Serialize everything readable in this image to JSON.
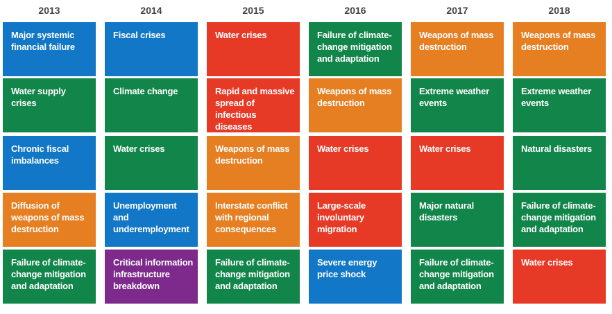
{
  "colors": {
    "economic": "#1177c6",
    "environmental": "#11854a",
    "geopolitical": "#e67e22",
    "societal": "#e63a27",
    "technological": "#7d2a8c"
  },
  "years": [
    {
      "label": "2013",
      "items": [
        {
          "text": "Major systemic financial failure",
          "category": "economic"
        },
        {
          "text": "Water supply crises",
          "category": "environmental"
        },
        {
          "text": "Chronic fiscal imbalances",
          "category": "economic"
        },
        {
          "text": "Diffusion of weapons of mass destruction",
          "category": "geopolitical"
        },
        {
          "text": "Failure of climate-change mitigation and adaptation",
          "category": "environmental"
        }
      ]
    },
    {
      "label": "2014",
      "items": [
        {
          "text": "Fiscal crises",
          "category": "economic"
        },
        {
          "text": "Climate change",
          "category": "environmental"
        },
        {
          "text": "Water crises",
          "category": "environmental"
        },
        {
          "text": "Unemployment and underemployment",
          "category": "economic"
        },
        {
          "text": "Critical information infrastructure breakdown",
          "category": "technological"
        }
      ]
    },
    {
      "label": "2015",
      "items": [
        {
          "text": "Water crises",
          "category": "societal"
        },
        {
          "text": "Rapid and massive spread of infectious diseases",
          "category": "societal"
        },
        {
          "text": "Weapons of mass destruction",
          "category": "geopolitical"
        },
        {
          "text": "Interstate conflict with regional consequences",
          "category": "geopolitical"
        },
        {
          "text": "Failure of climate-change mitigation and adaptation",
          "category": "environmental"
        }
      ]
    },
    {
      "label": "2016",
      "items": [
        {
          "text": "Failure of climate-change mitigation and adaptation",
          "category": "environmental"
        },
        {
          "text": "Weapons of mass destruction",
          "category": "geopolitical"
        },
        {
          "text": "Water crises",
          "category": "societal"
        },
        {
          "text": "Large-scale involuntary migration",
          "category": "societal"
        },
        {
          "text": "Severe energy price shock",
          "category": "economic"
        }
      ]
    },
    {
      "label": "2017",
      "items": [
        {
          "text": "Weapons of mass destruction",
          "category": "geopolitical"
        },
        {
          "text": "Extreme weather events",
          "category": "environmental"
        },
        {
          "text": "Water crises",
          "category": "societal"
        },
        {
          "text": "Major natural disasters",
          "category": "environmental"
        },
        {
          "text": "Failure of climate-change mitigation and adaptation",
          "category": "environmental"
        }
      ]
    },
    {
      "label": "2018",
      "items": [
        {
          "text": "Weapons of mass destruction",
          "category": "geopolitical"
        },
        {
          "text": "Extreme weather events",
          "category": "environmental"
        },
        {
          "text": "Natural disasters",
          "category": "environmental"
        },
        {
          "text": "Failure of climate-change mitigation and adaptation",
          "category": "environmental"
        },
        {
          "text": "Water crises",
          "category": "societal"
        }
      ]
    }
  ]
}
